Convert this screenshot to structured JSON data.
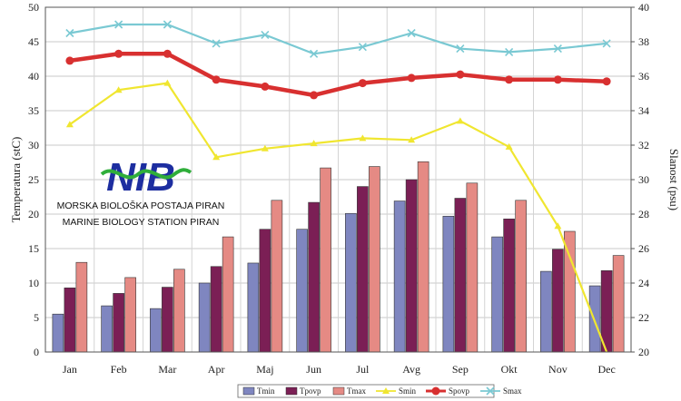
{
  "chart_data": {
    "type": "bar",
    "categories": [
      "Jan",
      "Feb",
      "Mar",
      "Apr",
      "Maj",
      "Jun",
      "Jul",
      "Avg",
      "Sep",
      "Okt",
      "Nov",
      "Dec"
    ],
    "ylabel": "Temperatura (stC)",
    "y2label": "Slanost (psu)",
    "ylim": [
      0,
      50
    ],
    "y2lim": [
      20,
      40
    ],
    "yticks": [
      0,
      5,
      10,
      15,
      20,
      25,
      30,
      35,
      40,
      45,
      50
    ],
    "y2ticks": [
      20,
      22,
      24,
      26,
      28,
      30,
      32,
      34,
      36,
      38,
      40
    ],
    "grid": true,
    "legend_position": "bottom-right",
    "bar_series": [
      {
        "name": "Tmin",
        "color": "#7f86c0",
        "values": [
          5.5,
          6.7,
          6.3,
          10.0,
          12.9,
          17.8,
          20.1,
          21.9,
          19.7,
          16.7,
          11.7,
          9.6
        ]
      },
      {
        "name": "Tpovp",
        "color": "#7b1f55",
        "values": [
          9.3,
          8.5,
          9.4,
          12.4,
          17.8,
          21.7,
          24.0,
          25.0,
          22.3,
          19.3,
          14.9,
          11.8
        ]
      },
      {
        "name": "Tmax",
        "color": "#e58a84",
        "values": [
          13.0,
          10.8,
          12.0,
          16.7,
          22.0,
          26.7,
          26.9,
          27.6,
          24.5,
          22.0,
          17.5,
          14.0
        ]
      }
    ],
    "line_series": [
      {
        "name": "Smin",
        "color": "#f0e630",
        "marker": "triangle",
        "values": [
          33.2,
          35.2,
          35.6,
          31.3,
          31.8,
          32.1,
          32.4,
          32.3,
          33.4,
          31.9,
          27.3,
          19.5
        ]
      },
      {
        "name": "Spovp",
        "color": "#d83030",
        "marker": "circle",
        "values": [
          36.9,
          37.3,
          37.3,
          35.8,
          35.4,
          34.9,
          35.6,
          35.9,
          36.1,
          35.8,
          35.8,
          35.7
        ]
      },
      {
        "name": "Smax",
        "color": "#7ac9d3",
        "marker": "x",
        "values": [
          38.5,
          39.0,
          39.0,
          37.9,
          38.4,
          37.3,
          37.7,
          38.5,
          37.6,
          37.4,
          37.6,
          37.9
        ]
      }
    ]
  },
  "logo": {
    "text": "NIB",
    "line1": "MORSKA BIOLOŠKA POSTAJA PIRAN",
    "line2": "MARINE BIOLOGY STATION PIRAN"
  }
}
